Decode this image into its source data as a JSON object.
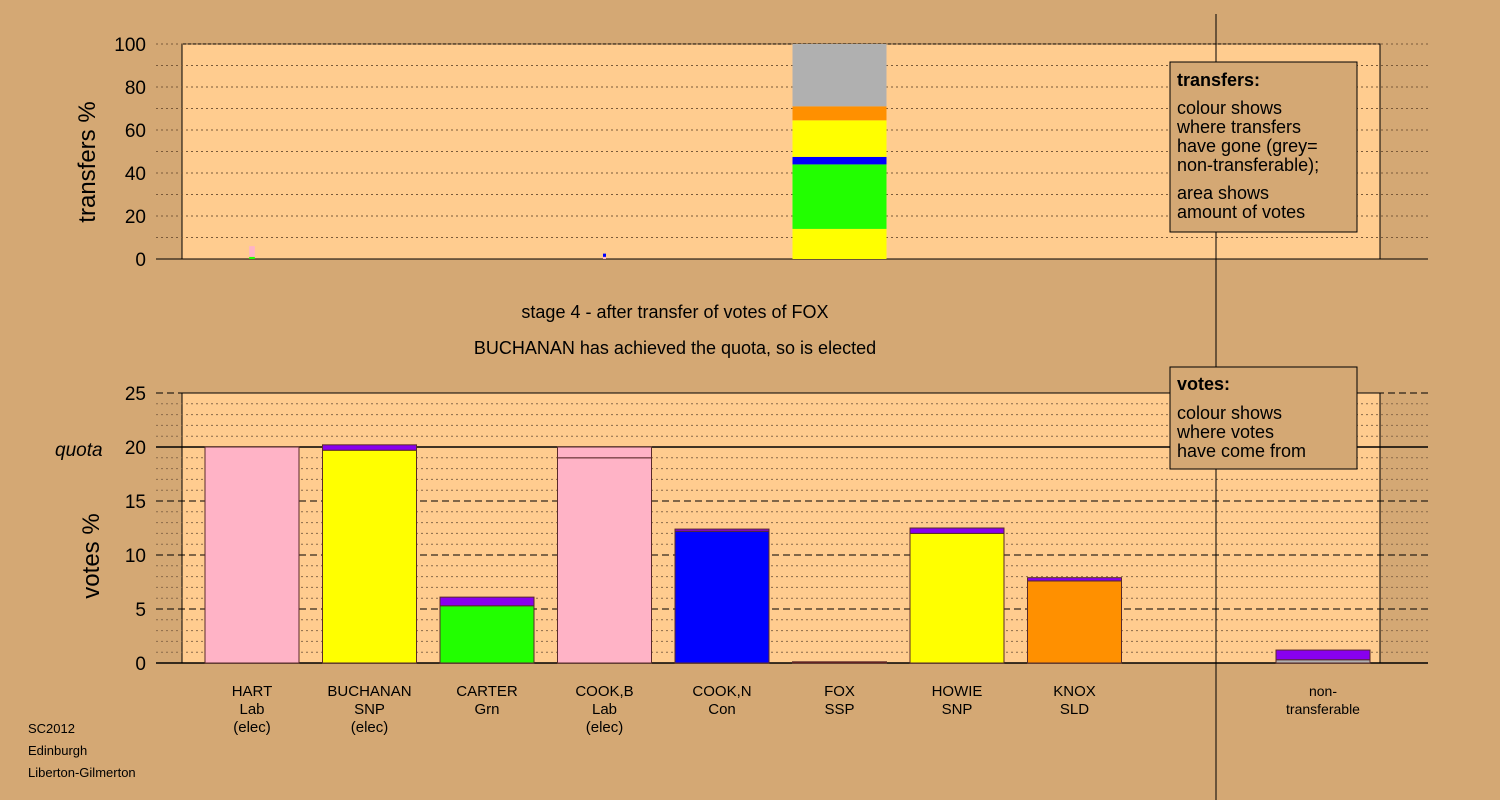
{
  "stage_title": "stage 4 - after transfer of votes of FOX",
  "stage_subtitle": "BUCHANAN has achieved the quota, so is elected",
  "footer": [
    "SC2012",
    "Edinburgh",
    "Liberton-Gilmerton"
  ],
  "colors": {
    "background": "#d4a874",
    "plot_bg": "#ffcc8f",
    "Lab": "#ffb3c6",
    "SNP": "#ffff00",
    "Grn": "#22ff00",
    "Con": "#0000ff",
    "SLD": "#ff9000",
    "SSP": "#8b0000",
    "transfer_from_fox": "#8800ee",
    "nontransferable": "#b0b0b0"
  },
  "legend_transfers": {
    "title": "transfers:",
    "lines1": [
      "colour shows",
      "where transfers",
      "have gone (grey=",
      "non-transferable);"
    ],
    "lines2": [
      "area shows",
      "amount of votes"
    ]
  },
  "legend_votes": {
    "title": "votes:",
    "lines": [
      "colour shows",
      "where votes",
      "have come from"
    ]
  },
  "chart_data": [
    {
      "type": "bar",
      "ylabel": "transfers %",
      "ylim": [
        0,
        100
      ],
      "yticks": [
        0,
        20,
        40,
        60,
        80,
        100
      ],
      "bars": [
        {
          "position": 0,
          "segments": [
            {
              "party": "Grn",
              "value": 1
            },
            {
              "party": "Lab",
              "value": 5
            }
          ]
        },
        {
          "position": 3,
          "segments": [
            {
              "party": "Lab",
              "value": 1
            },
            {
              "party": "Con",
              "value": 1.5
            }
          ]
        },
        {
          "position": 5,
          "segments": [
            {
              "party": "SNP",
              "value": 14
            },
            {
              "party": "Grn",
              "value": 30
            },
            {
              "party": "Con",
              "value": 3.5
            },
            {
              "party": "SNP",
              "value": 17
            },
            {
              "party": "SLD",
              "value": 6.5
            },
            {
              "party": "nontransferable",
              "value": 29
            }
          ]
        }
      ]
    },
    {
      "type": "bar",
      "ylabel": "votes %",
      "ylim": [
        0,
        25
      ],
      "yticks": [
        0,
        5,
        10,
        15,
        20,
        25
      ],
      "quota": 20,
      "quota_label": "quota",
      "candidates": [
        {
          "name": "HART",
          "party": "Lab",
          "status": "(elec)",
          "segments": [
            {
              "party": "Lab",
              "value": 20
            }
          ]
        },
        {
          "name": "BUCHANAN",
          "party": "SNP",
          "status": "(elec)",
          "segments": [
            {
              "party": "SNP",
              "value": 19.7
            },
            {
              "party": "transfer_from_fox",
              "value": 0.5
            }
          ]
        },
        {
          "name": "CARTER",
          "party": "Grn",
          "status": "",
          "segments": [
            {
              "party": "Grn",
              "value": 5.3
            },
            {
              "party": "transfer_from_fox",
              "value": 0.8
            }
          ]
        },
        {
          "name": "COOK,B",
          "party": "Lab",
          "status": "(elec)",
          "segments": [
            {
              "party": "Lab",
              "value": 19
            },
            {
              "party": "Lab",
              "value": 1
            }
          ]
        },
        {
          "name": "COOK,N",
          "party": "Con",
          "status": "",
          "segments": [
            {
              "party": "Con",
              "value": 12.2
            },
            {
              "party": "transfer_from_fox",
              "value": 0.2
            }
          ]
        },
        {
          "name": "FOX",
          "party": "SSP",
          "status": "",
          "segments": [
            {
              "party": "SSP",
              "value": 0.05
            }
          ]
        },
        {
          "name": "HOWIE",
          "party": "SNP",
          "status": "",
          "segments": [
            {
              "party": "SNP",
              "value": 12
            },
            {
              "party": "transfer_from_fox",
              "value": 0.5
            }
          ]
        },
        {
          "name": "KNOX",
          "party": "SLD",
          "status": "",
          "segments": [
            {
              "party": "SLD",
              "value": 7.6
            },
            {
              "party": "transfer_from_fox",
              "value": 0.3
            }
          ]
        }
      ],
      "nontransferable": {
        "label_lines": [
          "non-",
          "transferable"
        ],
        "segments": [
          {
            "party": "nontransferable",
            "value": 0.3
          },
          {
            "party": "transfer_from_fox",
            "value": 0.9
          }
        ]
      }
    }
  ]
}
